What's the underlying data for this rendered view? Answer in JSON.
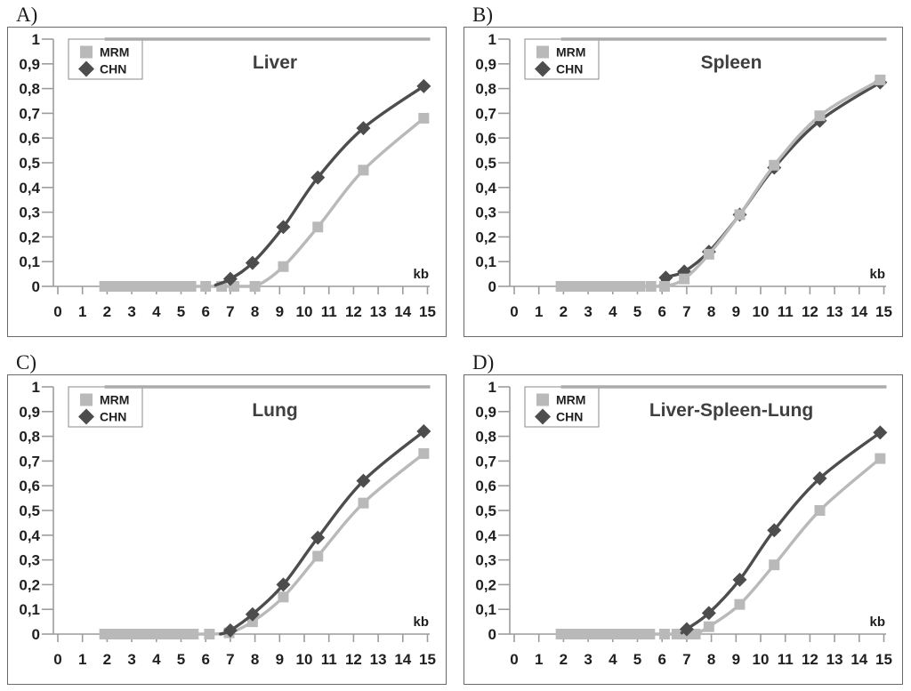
{
  "figure": {
    "description_labels": [
      "A)",
      "B)",
      "C)",
      "D)"
    ],
    "x_unit_label": "kb"
  },
  "colors": {
    "mrm": "#b9b9b9",
    "chn": "#4d4d4d",
    "reference": "#ababab",
    "axis": "#9c9c9c",
    "tick_text": "#1f1f1f",
    "title_text": "#3f3f3f",
    "box_border": "#6a6a6a",
    "legend_border": "#8a8a8a",
    "background": "#ffffff"
  },
  "axes": {
    "x_ticks": [
      "0",
      "1",
      "2",
      "3",
      "4",
      "5",
      "6",
      "7",
      "8",
      "9",
      "10",
      "11",
      "12",
      "13",
      "14",
      "15"
    ],
    "y_ticks": [
      "0",
      "0,1",
      "0,2",
      "0,3",
      "0,4",
      "0,5",
      "0,6",
      "0,7",
      "0,8",
      "0,9",
      "1"
    ],
    "x_range": [
      0,
      15
    ],
    "y_range": [
      0,
      1
    ],
    "grid": false
  },
  "legend": {
    "position": "top-left",
    "items": [
      {
        "label": "MRM",
        "marker": "square",
        "color_key": "mrm"
      },
      {
        "label": "CHN",
        "marker": "diamond",
        "color_key": "chn"
      }
    ]
  },
  "chart_data": [
    {
      "panel_label": "A)",
      "title": "Liver",
      "type": "line",
      "xlabel": "kb",
      "xlim": [
        0,
        15
      ],
      "ylim": [
        0,
        1
      ],
      "reference_line": {
        "y": 1,
        "x_from": 1.9,
        "x_to": 15
      },
      "series": [
        {
          "name": "MRM",
          "marker": "square",
          "color_key": "mrm",
          "zero_run": {
            "from": 1.9,
            "to": 5.1,
            "step": 0.2
          },
          "points": [
            [
              5.4,
              0
            ],
            [
              6.0,
              0
            ],
            [
              6.65,
              0
            ],
            [
              7.15,
              0
            ],
            [
              8.0,
              0
            ],
            [
              9.15,
              0.08
            ],
            [
              10.55,
              0.24
            ],
            [
              12.4,
              0.47
            ],
            [
              14.85,
              0.68
            ]
          ]
        },
        {
          "name": "CHN",
          "marker": "diamond",
          "color_key": "chn",
          "lead": [
            [
              6.4,
              0.005
            ]
          ],
          "points": [
            [
              7.0,
              0.03
            ],
            [
              7.9,
              0.095
            ],
            [
              9.15,
              0.24
            ],
            [
              10.55,
              0.44
            ],
            [
              12.4,
              0.64
            ],
            [
              14.85,
              0.81
            ]
          ]
        }
      ]
    },
    {
      "panel_label": "B)",
      "title": "Spleen",
      "type": "line",
      "xlabel": "kb",
      "xlim": [
        0,
        15
      ],
      "ylim": [
        0,
        1
      ],
      "reference_line": {
        "y": 1,
        "x_from": 1.9,
        "x_to": 15
      },
      "series": [
        {
          "name": "CHN",
          "marker": "diamond",
          "color_key": "chn",
          "lead": [
            [
              5.9,
              0
            ]
          ],
          "points": [
            [
              6.15,
              0.035
            ],
            [
              6.9,
              0.06
            ],
            [
              7.9,
              0.14
            ],
            [
              9.15,
              0.29
            ],
            [
              10.55,
              0.48
            ],
            [
              12.4,
              0.67
            ],
            [
              14.85,
              0.825
            ]
          ]
        },
        {
          "name": "MRM",
          "marker": "square",
          "color_key": "mrm",
          "zero_run": {
            "from": 1.9,
            "to": 5.1,
            "step": 0.2
          },
          "points": [
            [
              5.55,
              0
            ],
            [
              6.1,
              0
            ],
            [
              6.9,
              0.03
            ],
            [
              7.9,
              0.13
            ],
            [
              9.15,
              0.29
            ],
            [
              10.55,
              0.49
            ],
            [
              12.4,
              0.69
            ],
            [
              14.85,
              0.835
            ]
          ]
        }
      ]
    },
    {
      "panel_label": "C)",
      "title": "Lung",
      "type": "line",
      "xlabel": "kb",
      "xlim": [
        0,
        15
      ],
      "ylim": [
        0,
        1
      ],
      "reference_line": {
        "y": 1,
        "x_from": 1.9,
        "x_to": 15
      },
      "series": [
        {
          "name": "MRM",
          "marker": "square",
          "color_key": "mrm",
          "zero_run": {
            "from": 1.9,
            "to": 5.1,
            "step": 0.2
          },
          "points": [
            [
              5.5,
              0
            ],
            [
              6.15,
              0
            ],
            [
              6.95,
              0.005
            ],
            [
              7.9,
              0.05
            ],
            [
              9.15,
              0.15
            ],
            [
              10.55,
              0.315
            ],
            [
              12.4,
              0.53
            ],
            [
              14.85,
              0.73
            ]
          ]
        },
        {
          "name": "CHN",
          "marker": "diamond",
          "color_key": "chn",
          "lead": [
            [
              6.6,
              0
            ]
          ],
          "points": [
            [
              7.0,
              0.015
            ],
            [
              7.9,
              0.08
            ],
            [
              9.15,
              0.2
            ],
            [
              10.55,
              0.39
            ],
            [
              12.4,
              0.62
            ],
            [
              14.85,
              0.82
            ]
          ]
        }
      ]
    },
    {
      "panel_label": "D)",
      "title": "Liver-Spleen-Lung",
      "type": "line",
      "xlabel": "kb",
      "xlim": [
        0,
        15
      ],
      "ylim": [
        0,
        1
      ],
      "reference_line": {
        "y": 1,
        "x_from": 1.9,
        "x_to": 15
      },
      "series": [
        {
          "name": "MRM",
          "marker": "square",
          "color_key": "mrm",
          "zero_run": {
            "from": 1.9,
            "to": 5.1,
            "step": 0.2
          },
          "points": [
            [
              5.5,
              0
            ],
            [
              6.1,
              0
            ],
            [
              6.6,
              0
            ],
            [
              7.0,
              0
            ],
            [
              7.35,
              0
            ],
            [
              7.9,
              0.03
            ],
            [
              9.15,
              0.12
            ],
            [
              10.55,
              0.28
            ],
            [
              12.4,
              0.5
            ],
            [
              14.85,
              0.71
            ]
          ]
        },
        {
          "name": "CHN",
          "marker": "diamond",
          "color_key": "chn",
          "lead": [
            [
              6.8,
              0.005
            ]
          ],
          "points": [
            [
              7.0,
              0.02
            ],
            [
              7.9,
              0.085
            ],
            [
              9.15,
              0.22
            ],
            [
              10.55,
              0.42
            ],
            [
              12.4,
              0.63
            ],
            [
              14.85,
              0.815
            ]
          ]
        }
      ]
    }
  ]
}
